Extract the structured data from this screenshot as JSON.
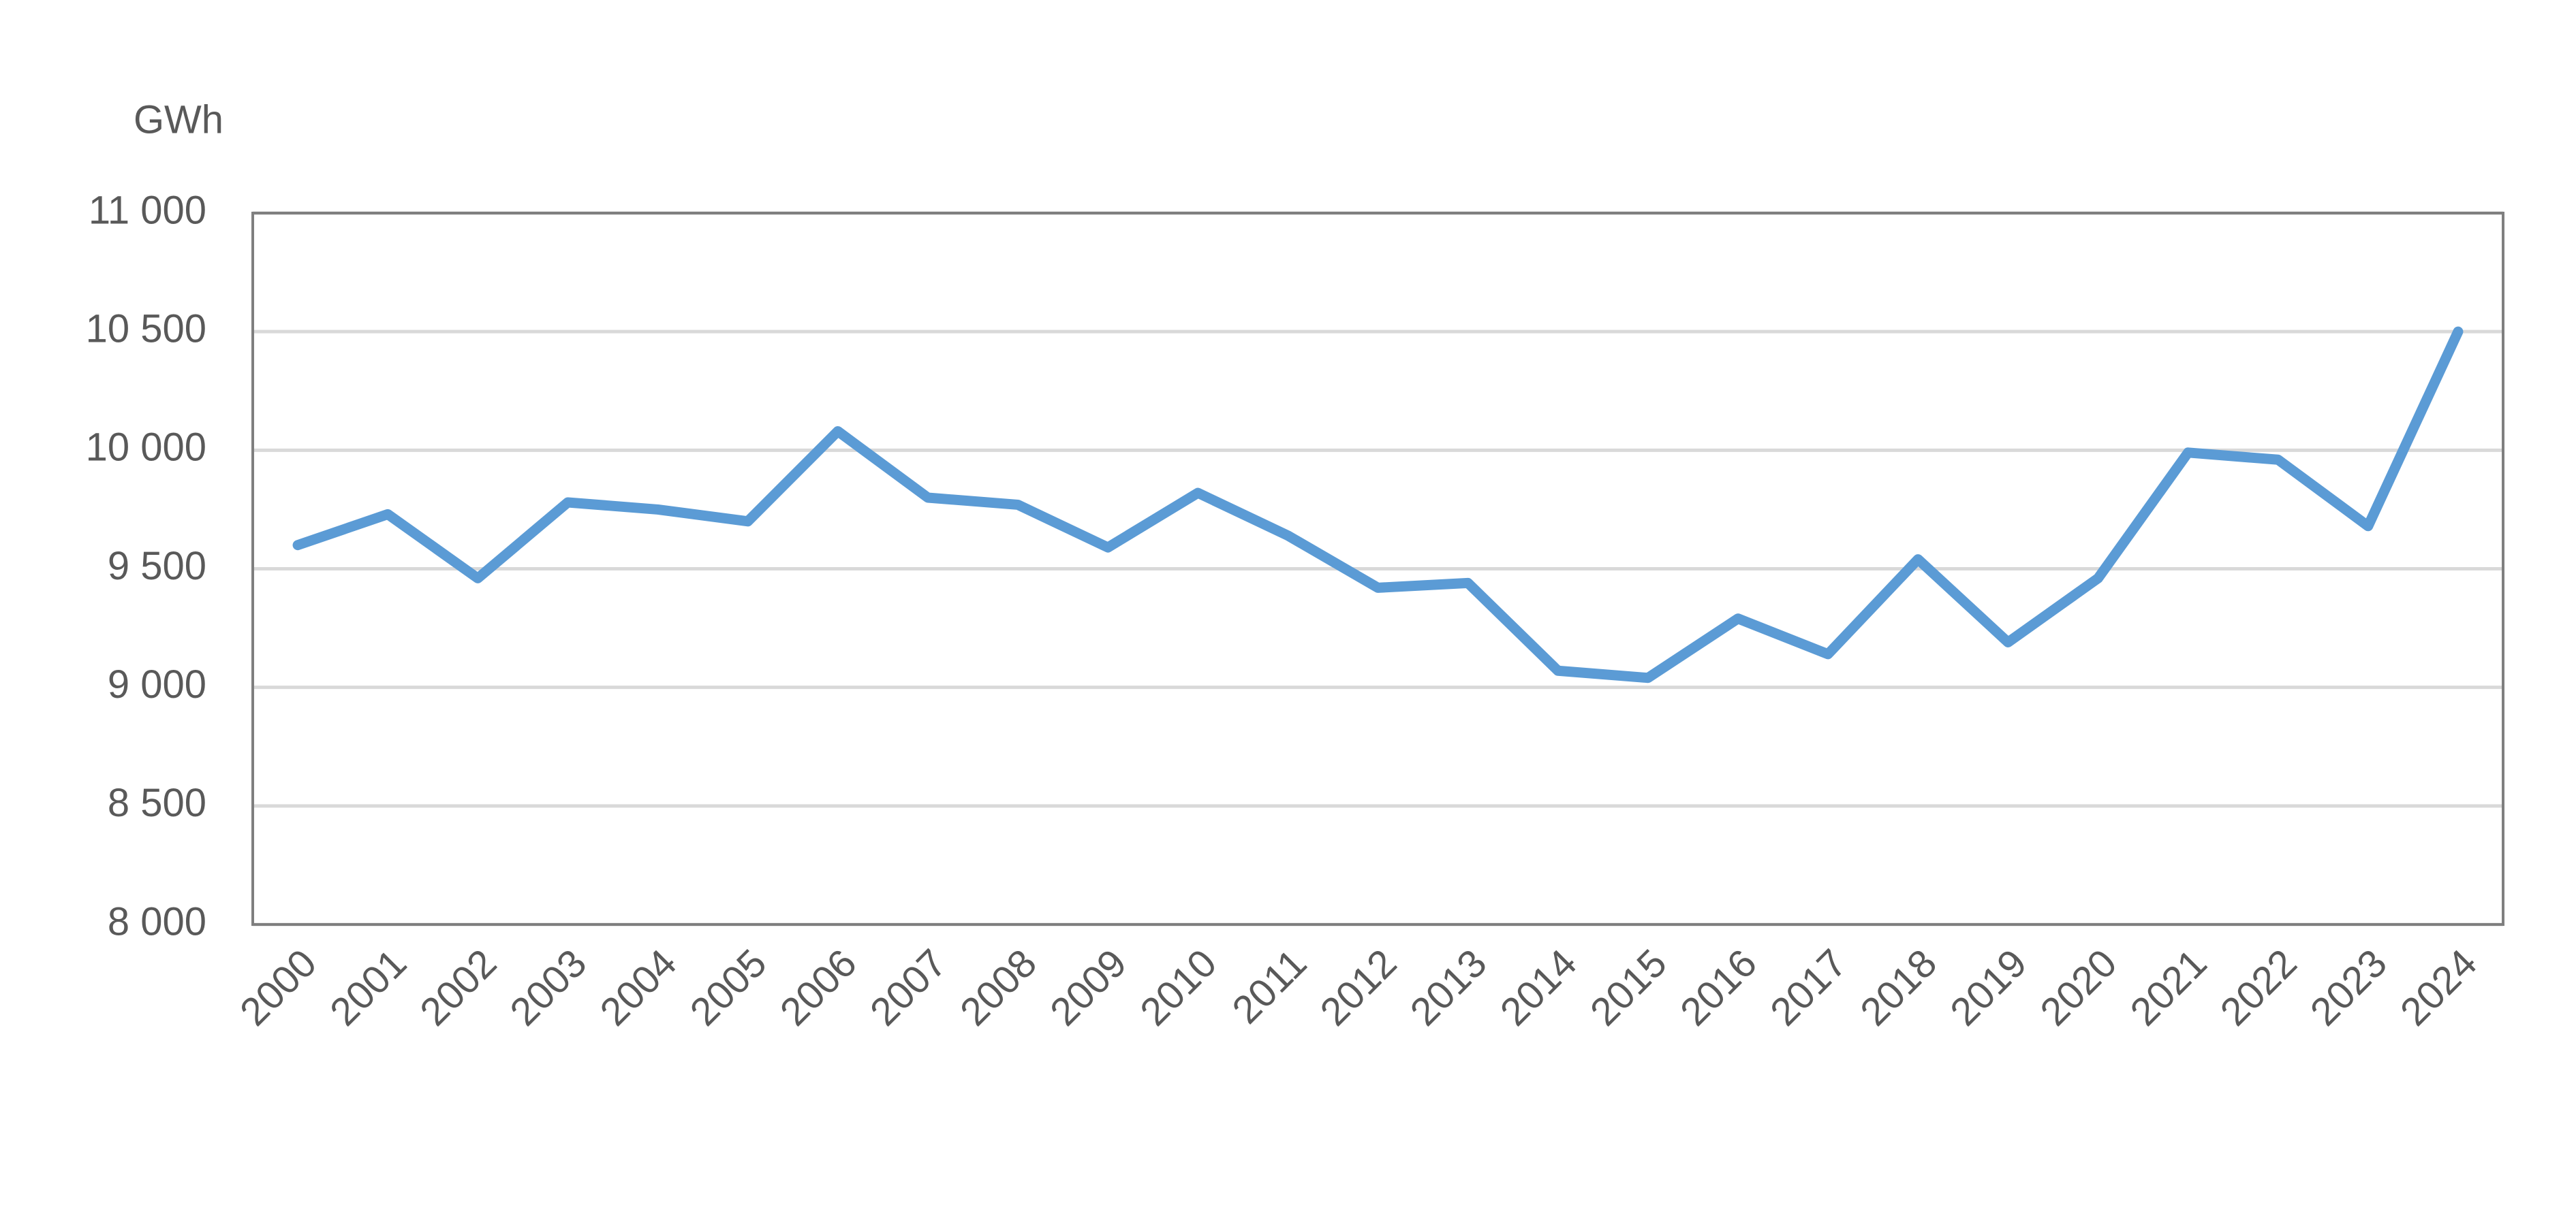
{
  "chart_data": {
    "type": "line",
    "y_label": "GWh",
    "categories": [
      "2000",
      "2001",
      "2002",
      "2003",
      "2004",
      "2005",
      "2006",
      "2007",
      "2008",
      "2009",
      "2010",
      "2011",
      "2012",
      "2013",
      "2014",
      "2015",
      "2016",
      "2017",
      "2018",
      "2019",
      "2020",
      "2021",
      "2022",
      "2023",
      "2024"
    ],
    "values": [
      9600,
      9730,
      9460,
      9780,
      9750,
      9700,
      10080,
      9800,
      9770,
      9590,
      9820,
      9640,
      9420,
      9440,
      9070,
      9040,
      9290,
      9140,
      9540,
      9190,
      9460,
      9990,
      9960,
      9680,
      10500
    ],
    "color": "#5b9bd5",
    "ylim": [
      8000,
      11000
    ],
    "yticks": [
      {
        "value": 8000,
        "label": "8 000"
      },
      {
        "value": 8500,
        "label": "8 500"
      },
      {
        "value": 9000,
        "label": "9 000"
      },
      {
        "value": 9500,
        "label": "9 500"
      },
      {
        "value": 10000,
        "label": "10 000"
      },
      {
        "value": 10500,
        "label": "10 500"
      },
      {
        "value": 11000,
        "label": "11 000"
      }
    ],
    "grid": true
  }
}
